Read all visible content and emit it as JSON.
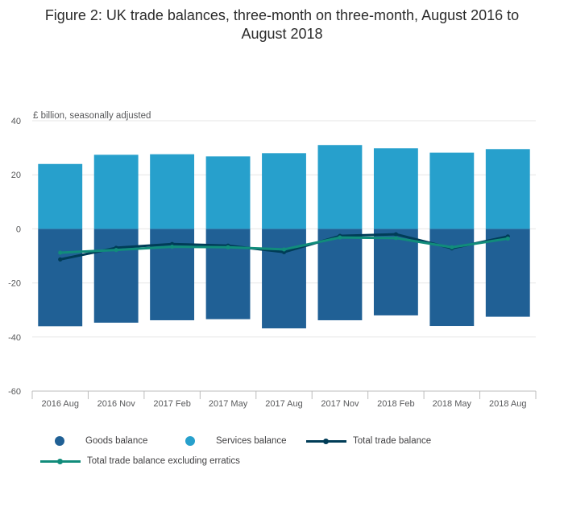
{
  "title_line1": "Figure 2: UK trade balances, three-month on three-month, August 2016 to",
  "title_line2": "August 2018",
  "chart_data": {
    "type": "bar",
    "title": "Figure 2: UK trade balances, three-month on three-month, August 2016 to August 2018",
    "ylabel": "£ billion, seasonally adjusted",
    "xlabel": "",
    "ylim": [
      -60,
      40
    ],
    "yticks": [
      -60,
      -40,
      -20,
      0,
      20,
      40
    ],
    "grid": true,
    "legend_position": "bottom",
    "categories": [
      "2016 Aug",
      "2016 Nov",
      "2017 Feb",
      "2017 May",
      "2017 Aug",
      "2017 Nov",
      "2018 Feb",
      "2018 May",
      "2018 Aug"
    ],
    "series": [
      {
        "name": "Goods balance",
        "kind": "bar",
        "color": "#206095",
        "values": [
          -36.0,
          -34.7,
          -33.8,
          -33.4,
          -36.8,
          -33.8,
          -32.0,
          -35.9,
          -32.5
        ]
      },
      {
        "name": "Services balance",
        "kind": "bar",
        "color": "#27a0cc",
        "values": [
          24.0,
          27.4,
          27.6,
          26.8,
          28.0,
          31.0,
          29.8,
          28.2,
          29.5
        ]
      },
      {
        "name": "Total trade balance",
        "kind": "line",
        "color": "#003c57",
        "values": [
          -11.3,
          -7.0,
          -5.6,
          -6.2,
          -8.6,
          -2.6,
          -2.0,
          -7.2,
          -2.8
        ]
      },
      {
        "name": "Total trade balance excluding erratics",
        "kind": "line",
        "color": "#118c7b",
        "values": [
          -8.8,
          -7.8,
          -6.6,
          -6.8,
          -7.6,
          -3.2,
          -3.4,
          -6.8,
          -3.6
        ]
      }
    ]
  }
}
